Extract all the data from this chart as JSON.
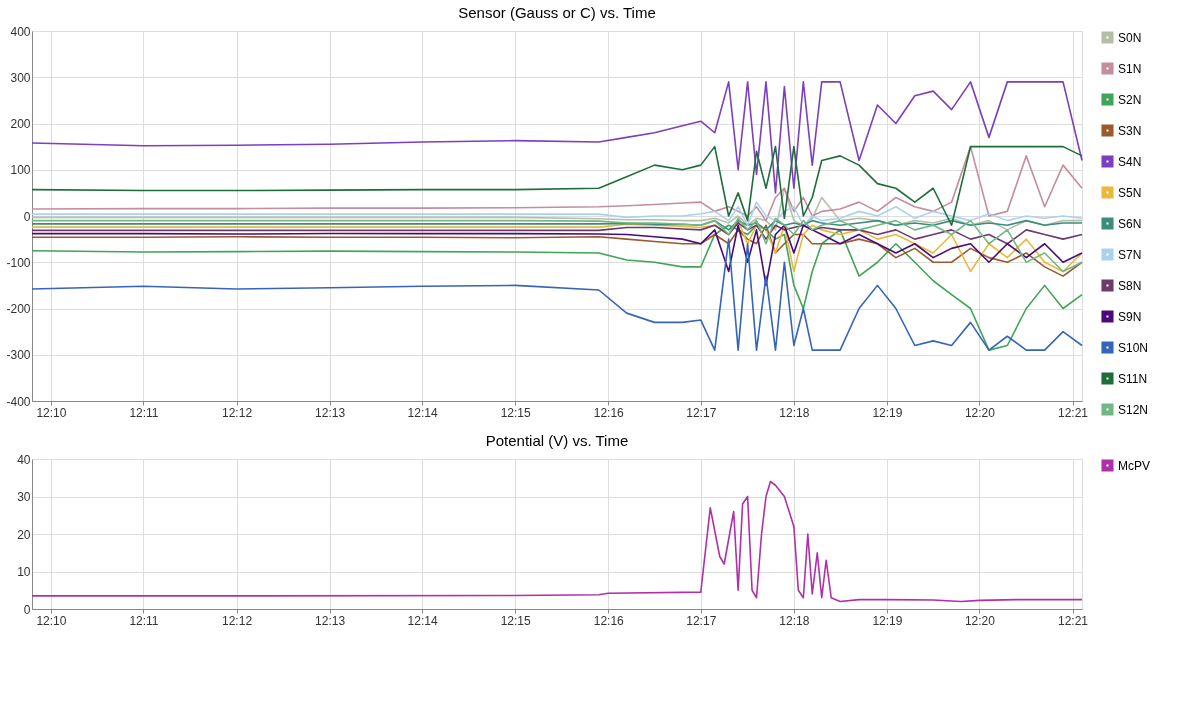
{
  "chart_data": [
    {
      "type": "line",
      "title": "Sensor (Gauss or C) vs. Time",
      "grid": true,
      "x": [
        12.1633,
        12.1833,
        12.2,
        12.2167,
        12.2333,
        12.25,
        12.265,
        12.27,
        12.275,
        12.28,
        12.2833,
        12.2858,
        12.2883,
        12.29,
        12.2917,
        12.2933,
        12.295,
        12.2967,
        12.2983,
        12.3,
        12.3017,
        12.3033,
        12.305,
        12.3083,
        12.3117,
        12.315,
        12.3183,
        12.3217,
        12.325,
        12.3283,
        12.3317,
        12.335,
        12.3383,
        12.3417,
        12.345,
        12.3483,
        12.3517
      ],
      "xlim": [
        12.1633,
        12.3517
      ],
      "xticks": [
        {
          "value": 12.1667,
          "label": "12:10"
        },
        {
          "value": 12.1833,
          "label": "12:11"
        },
        {
          "value": 12.2,
          "label": "12:12"
        },
        {
          "value": 12.2167,
          "label": "12:13"
        },
        {
          "value": 12.2333,
          "label": "12:14"
        },
        {
          "value": 12.25,
          "label": "12:15"
        },
        {
          "value": 12.2667,
          "label": "12:16"
        },
        {
          "value": 12.2833,
          "label": "12:17"
        },
        {
          "value": 12.3,
          "label": "12:18"
        },
        {
          "value": 12.3167,
          "label": "12:19"
        },
        {
          "value": 12.3333,
          "label": "12:20"
        },
        {
          "value": 12.35,
          "label": "12:21"
        }
      ],
      "ylim": [
        -400,
        400
      ],
      "yticks": [
        -400,
        -300,
        -200,
        -100,
        0,
        100,
        200,
        300,
        400
      ],
      "legend": "right",
      "series": [
        {
          "name": "S0N",
          "color": "#b5bfa8",
          "values": [
            -3,
            -3,
            -3,
            -3,
            -3,
            -3,
            -6,
            -8,
            -8,
            -10,
            -10,
            -5,
            -15,
            0,
            -20,
            -5,
            -10,
            -30,
            60,
            -10,
            -20,
            -5,
            40,
            -10,
            -5,
            -10,
            -20,
            -10,
            -15,
            -5,
            -20,
            -10,
            -30,
            -10,
            -20,
            -10,
            -10
          ]
        },
        {
          "name": "S1N",
          "color": "#c48e9a",
          "values": [
            15,
            16,
            16,
            17,
            17,
            18,
            20,
            22,
            25,
            28,
            30,
            10,
            20,
            10,
            0,
            20,
            -10,
            40,
            60,
            10,
            40,
            0,
            10,
            15,
            30,
            10,
            40,
            20,
            10,
            30,
            150,
            0,
            10,
            130,
            20,
            110,
            60
          ]
        },
        {
          "name": "S2N",
          "color": "#41a456",
          "values": [
            -75,
            -78,
            -77,
            -76,
            -77,
            -78,
            -80,
            -95,
            -100,
            -110,
            -110,
            -40,
            -20,
            -30,
            -40,
            -20,
            -30,
            -50,
            -40,
            -150,
            -200,
            -120,
            -60,
            -30,
            -130,
            -100,
            -60,
            -100,
            -140,
            -170,
            -200,
            -290,
            -280,
            -200,
            -150,
            -200,
            -170
          ]
        },
        {
          "name": "S3N",
          "color": "#9b5a2c",
          "values": [
            -46,
            -46,
            -45,
            -46,
            -46,
            -47,
            -45,
            -50,
            -55,
            -60,
            -60,
            -40,
            -60,
            -30,
            -50,
            -60,
            -20,
            -80,
            -60,
            -40,
            -40,
            -60,
            -60,
            -60,
            -50,
            -60,
            -90,
            -70,
            -100,
            -100,
            -70,
            -90,
            -100,
            -80,
            -110,
            -130,
            -100
          ]
        },
        {
          "name": "S4N",
          "color": "#7b3fbf",
          "values": [
            158,
            152,
            153,
            155,
            160,
            163,
            160,
            170,
            180,
            195,
            205,
            180,
            290,
            100,
            290,
            90,
            290,
            50,
            280,
            60,
            290,
            110,
            290,
            290,
            120,
            240,
            200,
            260,
            270,
            230,
            290,
            170,
            290,
            290,
            290,
            290,
            120
          ]
        },
        {
          "name": "S5N",
          "color": "#e8b93c",
          "values": [
            -24,
            -24,
            -24,
            -24,
            -24,
            -24,
            -24,
            -18,
            -20,
            -22,
            -25,
            -20,
            -40,
            -10,
            -60,
            -20,
            -30,
            -80,
            -20,
            -120,
            -40,
            -20,
            -30,
            -40,
            -30,
            -50,
            -40,
            -60,
            -80,
            -40,
            -120,
            -60,
            -90,
            -50,
            -100,
            -120,
            -80
          ]
        },
        {
          "name": "S6N",
          "color": "#3c8c7c",
          "values": [
            -17,
            -17,
            -17,
            -17,
            -17,
            -17,
            -17,
            -16,
            -18,
            -18,
            -20,
            -10,
            -30,
            -10,
            -20,
            -15,
            -30,
            -10,
            -20,
            -15,
            -20,
            -10,
            -15,
            -20,
            -15,
            -10,
            -20,
            -15,
            -20,
            -10,
            -20,
            -15,
            -20,
            -10,
            -20,
            -15,
            -15
          ]
        },
        {
          "name": "S7N",
          "color": "#a9d3ec",
          "values": [
            4,
            4,
            4,
            4,
            4,
            4,
            4,
            -3,
            0,
            0,
            5,
            10,
            -10,
            20,
            -20,
            30,
            0,
            -10,
            10,
            20,
            -20,
            0,
            -10,
            -5,
            10,
            0,
            20,
            -5,
            10,
            0,
            -10,
            5,
            -10,
            0,
            -5,
            0,
            -5
          ]
        },
        {
          "name": "S8N",
          "color": "#6e3a6a",
          "values": [
            -31,
            -31,
            -31,
            -31,
            -31,
            -31,
            -31,
            -25,
            -25,
            -28,
            -30,
            -20,
            -40,
            -15,
            -30,
            -20,
            -50,
            -20,
            -30,
            -25,
            -20,
            -30,
            -25,
            -30,
            -30,
            -40,
            -30,
            -50,
            -40,
            -30,
            -50,
            -40,
            -60,
            -30,
            -40,
            -50,
            -40
          ]
        },
        {
          "name": "S9N",
          "color": "#4b0a7a",
          "values": [
            -38,
            -38,
            -39,
            -38,
            -38,
            -38,
            -39,
            -40,
            -45,
            -50,
            -60,
            -30,
            -120,
            -20,
            -100,
            -30,
            -150,
            -40,
            -20,
            -80,
            -20,
            -30,
            -40,
            -60,
            -40,
            -60,
            -80,
            -60,
            -90,
            -70,
            -60,
            -100,
            -60,
            -90,
            -60,
            -100,
            -80
          ]
        },
        {
          "name": "S10N",
          "color": "#3565b8",
          "values": [
            -158,
            -152,
            -158,
            -155,
            -152,
            -150,
            -160,
            -210,
            -230,
            -230,
            -225,
            -290,
            -50,
            -290,
            -60,
            -290,
            -130,
            -290,
            -100,
            -280,
            -200,
            -290,
            -290,
            -290,
            -200,
            -150,
            -200,
            -280,
            -270,
            -280,
            -230,
            -290,
            -260,
            -290,
            -290,
            -250,
            -280
          ]
        },
        {
          "name": "S11N",
          "color": "#1e6e3c",
          "values": [
            57,
            55,
            55,
            56,
            57,
            57,
            60,
            85,
            110,
            100,
            110,
            150,
            0,
            50,
            -10,
            140,
            60,
            150,
            -5,
            150,
            0,
            40,
            120,
            130,
            110,
            70,
            60,
            30,
            60,
            -20,
            150,
            150,
            150,
            150,
            150,
            150,
            130
          ]
        },
        {
          "name": "S12N",
          "color": "#72b886",
          "values": [
            -10,
            -10,
            -10,
            -10,
            -10,
            -10,
            -11,
            -15,
            -15,
            -18,
            -20,
            -10,
            -40,
            -5,
            -30,
            -10,
            -60,
            -5,
            -20,
            -40,
            -10,
            -30,
            -20,
            -10,
            -30,
            -20,
            -10,
            -30,
            -20,
            -40,
            -10,
            -60,
            -30,
            -100,
            -80,
            -120,
            -100
          ]
        }
      ]
    },
    {
      "type": "line",
      "title": "Potential (V) vs. Time",
      "grid": true,
      "x": [
        12.1633,
        12.2,
        12.25,
        12.265,
        12.2667,
        12.2833,
        12.285,
        12.2867,
        12.2875,
        12.2892,
        12.29,
        12.2908,
        12.2917,
        12.2925,
        12.2933,
        12.2942,
        12.295,
        12.2958,
        12.2967,
        12.2983,
        12.3,
        12.3008,
        12.3017,
        12.3025,
        12.3033,
        12.3042,
        12.305,
        12.3058,
        12.3067,
        12.3083,
        12.3117,
        12.3167,
        12.325,
        12.33,
        12.3333,
        12.34,
        12.3517
      ],
      "xlim": [
        12.1633,
        12.3517
      ],
      "xticks": [
        {
          "value": 12.1667,
          "label": "12:10"
        },
        {
          "value": 12.1833,
          "label": "12:11"
        },
        {
          "value": 12.2,
          "label": "12:12"
        },
        {
          "value": 12.2167,
          "label": "12:13"
        },
        {
          "value": 12.2333,
          "label": "12:14"
        },
        {
          "value": 12.25,
          "label": "12:15"
        },
        {
          "value": 12.2667,
          "label": "12:16"
        },
        {
          "value": 12.2833,
          "label": "12:17"
        },
        {
          "value": 12.3,
          "label": "12:18"
        },
        {
          "value": 12.3167,
          "label": "12:19"
        },
        {
          "value": 12.3333,
          "label": "12:20"
        },
        {
          "value": 12.35,
          "label": "12:21"
        }
      ],
      "ylim": [
        0,
        40
      ],
      "yticks": [
        0,
        10,
        20,
        30,
        40
      ],
      "legend": "right",
      "series": [
        {
          "name": "McPV",
          "color": "#b030a8",
          "values": [
            3.5,
            3.5,
            3.6,
            3.8,
            4.2,
            4.5,
            27,
            14,
            12,
            26,
            5,
            28,
            30,
            5,
            3,
            20,
            30,
            34,
            33,
            30,
            22,
            5,
            3,
            20,
            4,
            15,
            3,
            13,
            3,
            2,
            2.5,
            2.5,
            2.4,
            2,
            2.3,
            2.5,
            2.5
          ]
        }
      ]
    }
  ]
}
